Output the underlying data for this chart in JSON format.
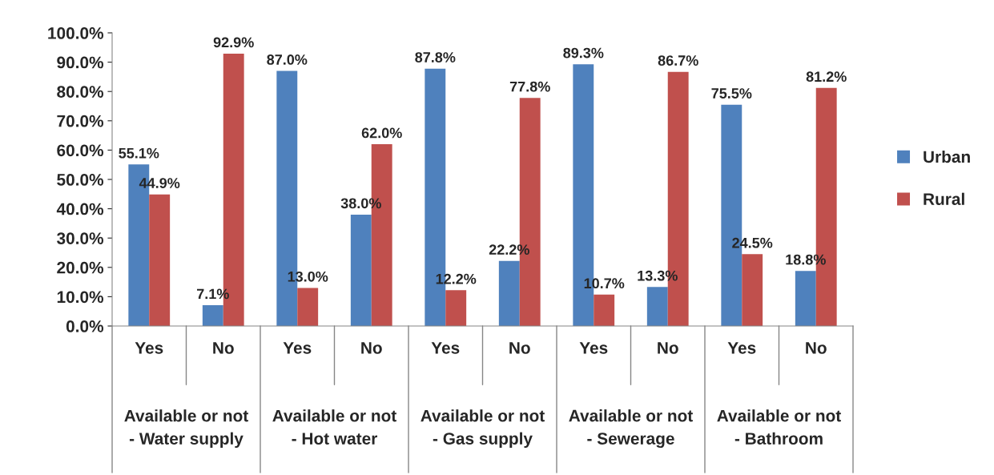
{
  "chart_data": {
    "type": "bar",
    "categories": [
      "Yes",
      "No",
      "Yes",
      "No",
      "Yes",
      "No",
      "Yes",
      "No",
      "Yes",
      "No"
    ],
    "series": [
      {
        "name": "Urban",
        "color": "#4f81bd",
        "values": [
          55.1,
          7.1,
          87.0,
          38.0,
          87.8,
          22.2,
          89.3,
          13.3,
          75.5,
          18.8
        ],
        "value_labels": [
          "55.1%",
          "7.1%",
          "87.0%",
          "38.0%",
          "87.8%",
          "22.2%",
          "89.3%",
          "13.3%",
          "75.5%",
          "18.8%"
        ]
      },
      {
        "name": "Rural",
        "color": "#c0504d",
        "values": [
          44.9,
          92.9,
          13.0,
          62.0,
          12.2,
          77.8,
          10.7,
          86.7,
          24.5,
          81.2
        ],
        "value_labels": [
          "44.9%",
          "92.9%",
          "13.0%",
          "62.0%",
          "12.2%",
          "77.8%",
          "10.7%",
          "86.7%",
          "24.5%",
          "81.2%"
        ]
      }
    ],
    "annotations": [
      "Available or not\n- Water supply",
      "Available or not\n- Hot water",
      "Available or not\n- Gas supply",
      "Available or not\n- Sewerage",
      "Available or not\n- Bathroom"
    ],
    "ylim": [
      0,
      100
    ],
    "yticks": [
      {
        "value": 0,
        "label": "0.0%"
      },
      {
        "value": 10,
        "label": "10.0%"
      },
      {
        "value": 20,
        "label": "20.0%"
      },
      {
        "value": 30,
        "label": "30.0%"
      },
      {
        "value": 40,
        "label": "40.0%"
      },
      {
        "value": 50,
        "label": "50.0%"
      },
      {
        "value": 60,
        "label": "60.0%"
      },
      {
        "value": 70,
        "label": "70.0%"
      },
      {
        "value": 80,
        "label": "80.0%"
      },
      {
        "value": 90,
        "label": "90.0%"
      },
      {
        "value": 100,
        "label": "100.0%"
      }
    ],
    "grid": false,
    "legend": "right"
  }
}
